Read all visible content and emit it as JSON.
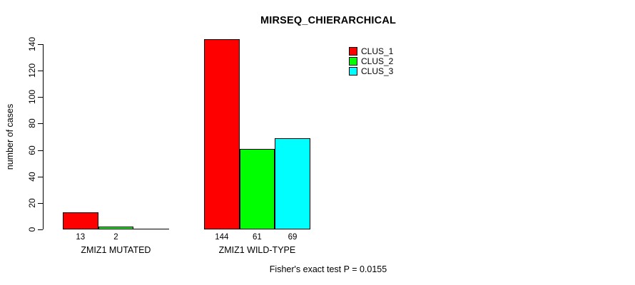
{
  "chart_data": {
    "type": "bar",
    "title": "MIRSEQ_CHIERARCHICAL",
    "ylabel": "number of cases",
    "xlabel": "",
    "ylim": [
      0,
      140
    ],
    "yticks": [
      0,
      20,
      40,
      60,
      80,
      100,
      120,
      140
    ],
    "categories": [
      "ZMIZ1 MUTATED",
      "ZMIZ1 WILD-TYPE"
    ],
    "series": [
      {
        "name": "CLUS_1",
        "color": "#FF0000",
        "values": [
          13,
          144
        ]
      },
      {
        "name": "CLUS_2",
        "color": "#00FF00",
        "values": [
          2,
          61
        ]
      },
      {
        "name": "CLUS_3",
        "color": "#00FFFF",
        "values": [
          0,
          69
        ]
      }
    ],
    "bar_labels": [
      [
        "13",
        "2",
        ""
      ],
      [
        "144",
        "61",
        "69"
      ]
    ],
    "legend_position": "top-right",
    "grid": false,
    "annotation": "Fisher's exact test P = 0.0155"
  }
}
